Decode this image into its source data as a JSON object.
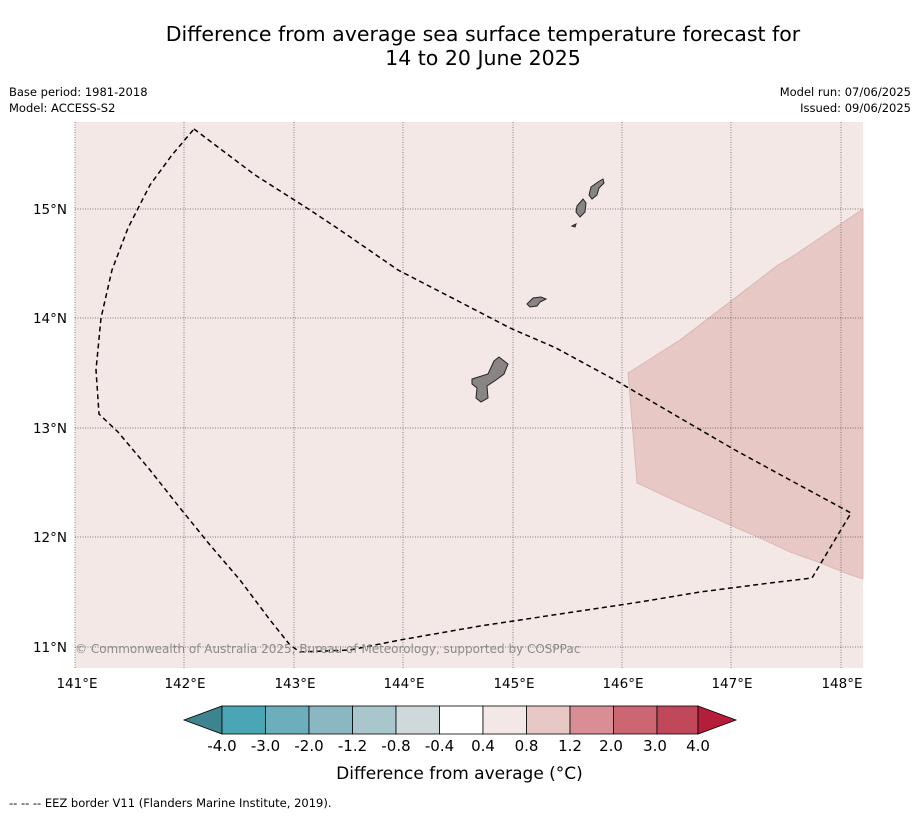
{
  "title": {
    "line1": "Difference from average sea surface temperature forecast for",
    "line2": "14 to 20 June 2025"
  },
  "meta_left": {
    "base_period": "Base period: 1981-2018",
    "model": "Model: ACCESS-S2"
  },
  "meta_right": {
    "model_run": "Model run: 07/06/2025",
    "issued": "Issued: 09/06/2025"
  },
  "map": {
    "background_color": "#f4e8e7",
    "warm_region_color": "#e8c8c4",
    "land_color": "#8a8585",
    "lat_labels": [
      "15°N",
      "14°N",
      "13°N",
      "12°N",
      "11°N"
    ],
    "lon_labels": [
      "141°E",
      "142°E",
      "143°E",
      "144°E",
      "145°E",
      "146°E",
      "147°E",
      "148°E"
    ],
    "copyright": "© Commonwealth of Australia 2025, Bureau of Meteorology, supported by COSPPac"
  },
  "colorbar": {
    "labels": [
      "-4.0",
      "-3.0",
      "-2.0",
      "-1.2",
      "-0.8",
      "-0.4",
      "0.4",
      "0.8",
      "1.2",
      "2.0",
      "3.0",
      "4.0"
    ],
    "colors": [
      "#3d8490",
      "#4aa5b5",
      "#6caebb",
      "#8bb7c2",
      "#a8c6cb",
      "#cfd8da",
      "#ffffff",
      "#f4e8e7",
      "#e8c8c4",
      "#d98e96",
      "#cc6672",
      "#c0485a",
      "#b41e3a"
    ],
    "title": "Difference from average (°C)"
  },
  "footnote": "--  --  -- EEZ border V11 (Flanders Marine Institute, 2019)."
}
